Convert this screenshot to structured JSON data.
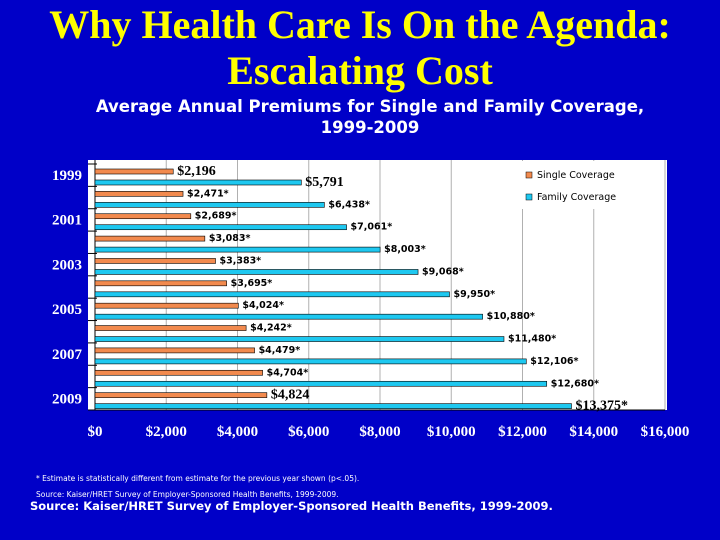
{
  "slide": {
    "title_line1": "Why Health Care Is On the Agenda:",
    "title_line2": "Escalating Cost",
    "footnote": "* Estimate is statistically different from estimate for the previous year shown (p<.05).",
    "source_small": "Source:  Kaiser/HRET Survey of Employer-Sponsored Health Benefits, 1999-2009.",
    "source": "Source:  Kaiser/HRET Survey of Employer-Sponsored Health Benefits, 1999-2009."
  },
  "colors": {
    "background": "#0000c8",
    "title": "#ffff00",
    "single": "#f28a4e",
    "family": "#1ec8f0",
    "plot_bg": "#ffffff"
  },
  "chart_data": {
    "type": "bar",
    "orientation": "horizontal",
    "title": "Average Annual Premiums for Single and Family Coverage, 1999-2009",
    "categories": [
      "1999",
      "2000",
      "2001",
      "2002",
      "2003",
      "2004",
      "2005",
      "2006",
      "2007",
      "2008",
      "2009"
    ],
    "category_labels": [
      "1999",
      "",
      "2001",
      "",
      "2003",
      "",
      "2005",
      "",
      "2007",
      "",
      "2009"
    ],
    "series": [
      {
        "name": "Single Coverage",
        "values": [
          2196,
          2471,
          2689,
          3083,
          3383,
          3695,
          4024,
          4242,
          4479,
          4704,
          4824
        ],
        "labels": [
          "$2,196",
          "$2,471*",
          "$2,689*",
          "$3,083*",
          "$3,383*",
          "$3,695*",
          "$4,024*",
          "$4,242*",
          "$4,479*",
          "$4,704*",
          "$4,824"
        ]
      },
      {
        "name": "Family Coverage",
        "values": [
          5791,
          6438,
          7061,
          8003,
          9068,
          9950,
          10880,
          11480,
          12106,
          12680,
          13375
        ],
        "labels": [
          "$5,791",
          "$6,438*",
          "$7,061*",
          "$8,003*",
          "$9,068*",
          "$9,950*",
          "$10,880*",
          "$11,480*",
          "$12,106*",
          "$12,680*",
          "$13,375*"
        ]
      }
    ],
    "xlim": [
      0,
      16000
    ],
    "xticks": [
      0,
      2000,
      4000,
      6000,
      8000,
      10000,
      12000,
      14000,
      16000
    ],
    "xtick_labels": [
      "$0",
      "$2,000",
      "$4,000",
      "$6,000",
      "$8,000",
      "$10,000",
      "$12,000",
      "$14,000",
      "$16,000"
    ],
    "legend_position": "top-right",
    "grid": true
  }
}
